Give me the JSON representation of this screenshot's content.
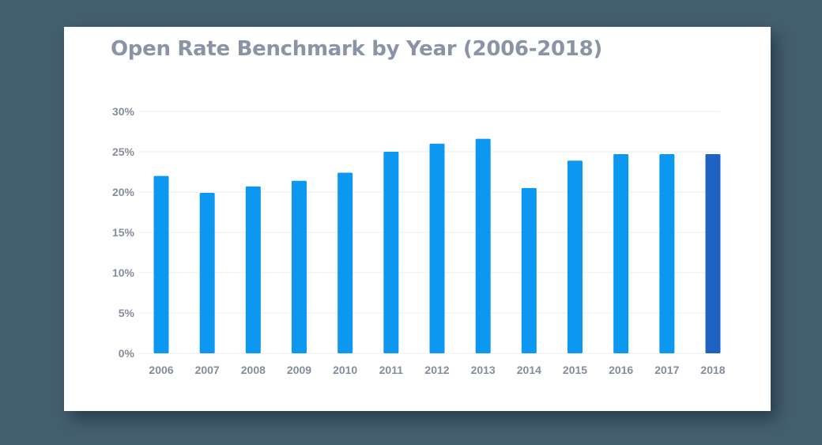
{
  "chart_data": {
    "type": "bar",
    "title": "Open Rate Benchmark by Year (2006-2018)",
    "xlabel": "",
    "ylabel": "",
    "categories": [
      "2006",
      "2007",
      "2008",
      "2009",
      "2010",
      "2011",
      "2012",
      "2013",
      "2014",
      "2015",
      "2016",
      "2017",
      "2018"
    ],
    "values": [
      22.0,
      19.9,
      20.7,
      21.4,
      22.4,
      25.0,
      26.0,
      26.6,
      20.5,
      23.9,
      24.7,
      24.7,
      24.7
    ],
    "ylim": [
      0,
      30
    ],
    "yticks": [
      0,
      5,
      10,
      15,
      20,
      25,
      30
    ],
    "ytick_suffix": "%",
    "grid": true,
    "legend": "none",
    "colors": {
      "bar": "#0c97f0",
      "highlight_bar": "#1f63c2",
      "highlight_index": 12,
      "grid": "#eceef2",
      "tick_text": "#858d9a",
      "title": "#8a94a6"
    }
  }
}
